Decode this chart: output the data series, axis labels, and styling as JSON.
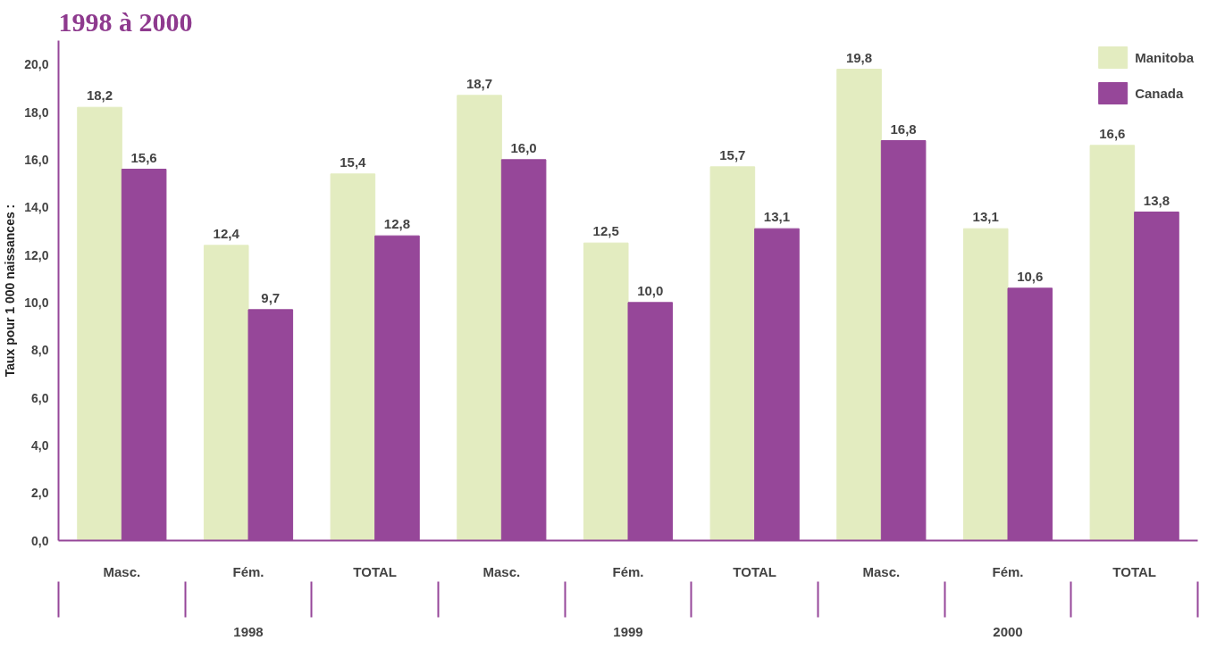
{
  "chart_data": {
    "type": "bar",
    "title": "1998 à 2000",
    "ylabel": "Taux pour 1 000 naissances :",
    "categories": [
      "Masc.",
      "Fém.",
      "TOTAL",
      "Masc.",
      "Fém.",
      "TOTAL",
      "Masc.",
      "Fém.",
      "TOTAL"
    ],
    "annotations": [
      "1998",
      "1999",
      "2000"
    ],
    "series": [
      {
        "name": "Manitoba",
        "color": "#e3ecc0",
        "values": [
          18.2,
          12.4,
          15.4,
          18.7,
          12.5,
          15.7,
          19.8,
          13.1,
          16.6
        ],
        "value_labels": [
          "18,2",
          "12,4",
          "15,4",
          "18,7",
          "12,5",
          "15,7",
          "19,8",
          "13,1",
          "16,6"
        ]
      },
      {
        "name": "Canada",
        "color": "#964799",
        "values": [
          15.6,
          9.7,
          12.8,
          16.0,
          10.0,
          13.1,
          16.8,
          10.6,
          13.8
        ],
        "value_labels": [
          "15,6",
          "9,7",
          "12,8",
          "16,0",
          "10,0",
          "13,1",
          "16,8",
          "10,6",
          "13,8"
        ]
      }
    ],
    "ylim": [
      0,
      21
    ],
    "yticks": [
      {
        "value": 0,
        "label": "0,0"
      },
      {
        "value": 2,
        "label": "2,0"
      },
      {
        "value": 4,
        "label": "4,0"
      },
      {
        "value": 6,
        "label": "6,0"
      },
      {
        "value": 8,
        "label": "8,0"
      },
      {
        "value": 10,
        "label": "10,0"
      },
      {
        "value": 12,
        "label": "12,0"
      },
      {
        "value": 14,
        "label": "14,0"
      },
      {
        "value": 16,
        "label": "16,0"
      },
      {
        "value": 18,
        "label": "18,0"
      },
      {
        "value": 20,
        "label": "20,0"
      }
    ],
    "grid": false,
    "legend": "top right"
  }
}
